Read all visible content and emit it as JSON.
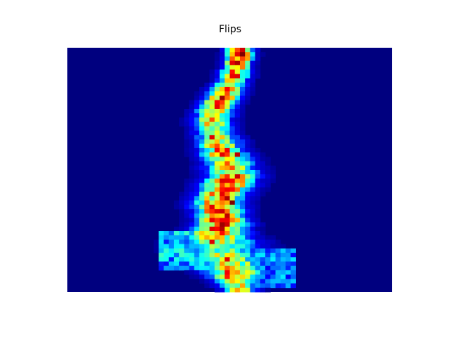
{
  "chart_data": {
    "type": "heatmap",
    "title": "Flips",
    "xlabel": "",
    "ylabel": "",
    "axes_visible": false,
    "colormap": "jet",
    "colormap_stops": [
      "#00007f",
      "#0000ff",
      "#00ffff",
      "#ffff00",
      "#ff0000",
      "#7f0000"
    ],
    "background_color": "#00007f",
    "grid_columns": 64,
    "grid_rows": 56,
    "x_range": [
      0,
      64
    ],
    "y_range": [
      0,
      56
    ],
    "ridge_center_by_row": [
      34,
      34,
      34,
      33.5,
      33.5,
      33,
      33,
      32.5,
      32,
      31.5,
      31,
      30.5,
      30,
      29.5,
      29,
      29,
      28.5,
      28.5,
      29,
      29,
      29.5,
      30,
      30,
      30.5,
      31,
      31.5,
      32,
      32,
      32.5,
      32.5,
      32,
      31.5,
      31,
      30.5,
      30,
      29.5,
      29.5,
      30,
      30,
      30.5,
      30.5,
      30,
      29.5,
      29.5,
      30,
      30,
      30.5,
      31,
      31.5,
      32,
      32.5,
      33,
      33,
      33.5,
      33.5,
      34
    ],
    "ridge_width_by_row": [
      3,
      3,
      3,
      3,
      3,
      3.5,
      3.5,
      3.5,
      4,
      4,
      4,
      4,
      4,
      4,
      4.5,
      4.5,
      4.5,
      4.5,
      4.5,
      4.5,
      5,
      5,
      5,
      5,
      5.5,
      5.5,
      5.5,
      6,
      6,
      6,
      6,
      6,
      6,
      6,
      6,
      6,
      6,
      5.5,
      5.5,
      5.5,
      6,
      6,
      7,
      8,
      9,
      9.5,
      9.5,
      9,
      9,
      8.5,
      8,
      7,
      6,
      5,
      4.5,
      4
    ],
    "ridge_peak_by_row": [
      0.9,
      0.95,
      0.85,
      0.8,
      0.75,
      0.7,
      0.7,
      0.65,
      0.6,
      0.65,
      0.7,
      0.75,
      0.8,
      0.7,
      0.65,
      0.6,
      0.6,
      0.65,
      0.6,
      0.55,
      0.55,
      0.6,
      0.65,
      0.7,
      0.75,
      0.7,
      0.65,
      0.6,
      0.65,
      0.7,
      0.75,
      0.8,
      0.75,
      0.7,
      0.65,
      0.7,
      0.75,
      0.8,
      0.8,
      0.85,
      0.8,
      0.75,
      0.7,
      0.6,
      0.55,
      0.5,
      0.5,
      0.55,
      0.55,
      0.6,
      0.65,
      0.7,
      0.7,
      0.65,
      0.6,
      0.6
    ],
    "hotspots": [
      {
        "row": 1,
        "col": 34,
        "value": 0.95
      },
      {
        "row": 11,
        "col": 30,
        "value": 0.95
      },
      {
        "row": 20,
        "col": 28,
        "value": 0.85
      },
      {
        "row": 24,
        "col": 33,
        "value": 0.9
      },
      {
        "row": 29,
        "col": 33,
        "value": 0.88
      },
      {
        "row": 34,
        "col": 31,
        "value": 0.92
      },
      {
        "row": 35,
        "col": 32,
        "value": 1.0
      },
      {
        "row": 38,
        "col": 31,
        "value": 0.9
      },
      {
        "row": 41,
        "col": 30,
        "value": 0.92
      },
      {
        "row": 44,
        "col": 28,
        "value": 0.85
      },
      {
        "row": 48,
        "col": 31,
        "value": 0.85
      }
    ],
    "branches": [
      {
        "name": "",
        "row_start": 42,
        "row_end": 50,
        "col_start": 18,
        "col_end": 29,
        "value": 0.35
      },
      {
        "name": "",
        "row_start": 46,
        "row_end": 54,
        "col_start": 33,
        "col_end": 44,
        "value": 0.3
      }
    ]
  }
}
